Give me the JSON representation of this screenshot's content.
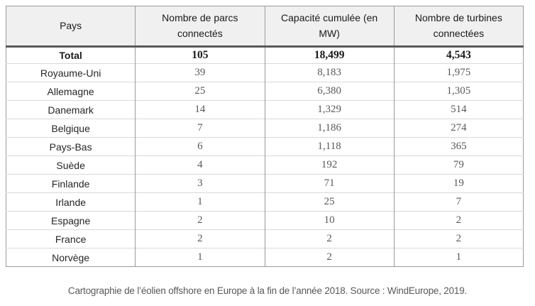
{
  "chart_data": {
    "type": "table",
    "columns": [
      "Pays",
      "Nombre de parcs connectés",
      "Capacité cumulée (en MW)",
      "Nombre de turbines connectées"
    ],
    "total": [
      "Total",
      "105",
      "18,499",
      "4,543"
    ],
    "rows": [
      [
        "Royaume-Uni",
        "39",
        "8,183",
        "1,975"
      ],
      [
        "Allemagne",
        "25",
        "6,380",
        "1,305"
      ],
      [
        "Danemark",
        "14",
        "1,329",
        "514"
      ],
      [
        "Belgique",
        "7",
        "1,186",
        "274"
      ],
      [
        "Pays-Bas",
        "6",
        "1,118",
        "365"
      ],
      [
        "Suède",
        "4",
        "192",
        "79"
      ],
      [
        "Finlande",
        "3",
        "71",
        "19"
      ],
      [
        "Irlande",
        "1",
        "25",
        "7"
      ],
      [
        "Espagne",
        "2",
        "10",
        "2"
      ],
      [
        "France",
        "2",
        "2",
        "2"
      ],
      [
        "Norvège",
        "1",
        "2",
        "1"
      ]
    ],
    "title": "",
    "legend": "none",
    "grid": "table-borders"
  },
  "caption": "Cartographie de l’éolien offshore en Europe à la fin de l’année 2018. Source : WindEurope, 2019.",
  "colors": {
    "header_background": "#f0f0f0",
    "header_text": "#1a1a1a",
    "body_number_text": "#595959",
    "country_text": "#262626",
    "thick_divider": "#595959",
    "vertical_border": "#9b9b9b",
    "horizontal_border": "#d9d9d9",
    "caption_text": "#595959",
    "page_background": "#ffffff"
  }
}
